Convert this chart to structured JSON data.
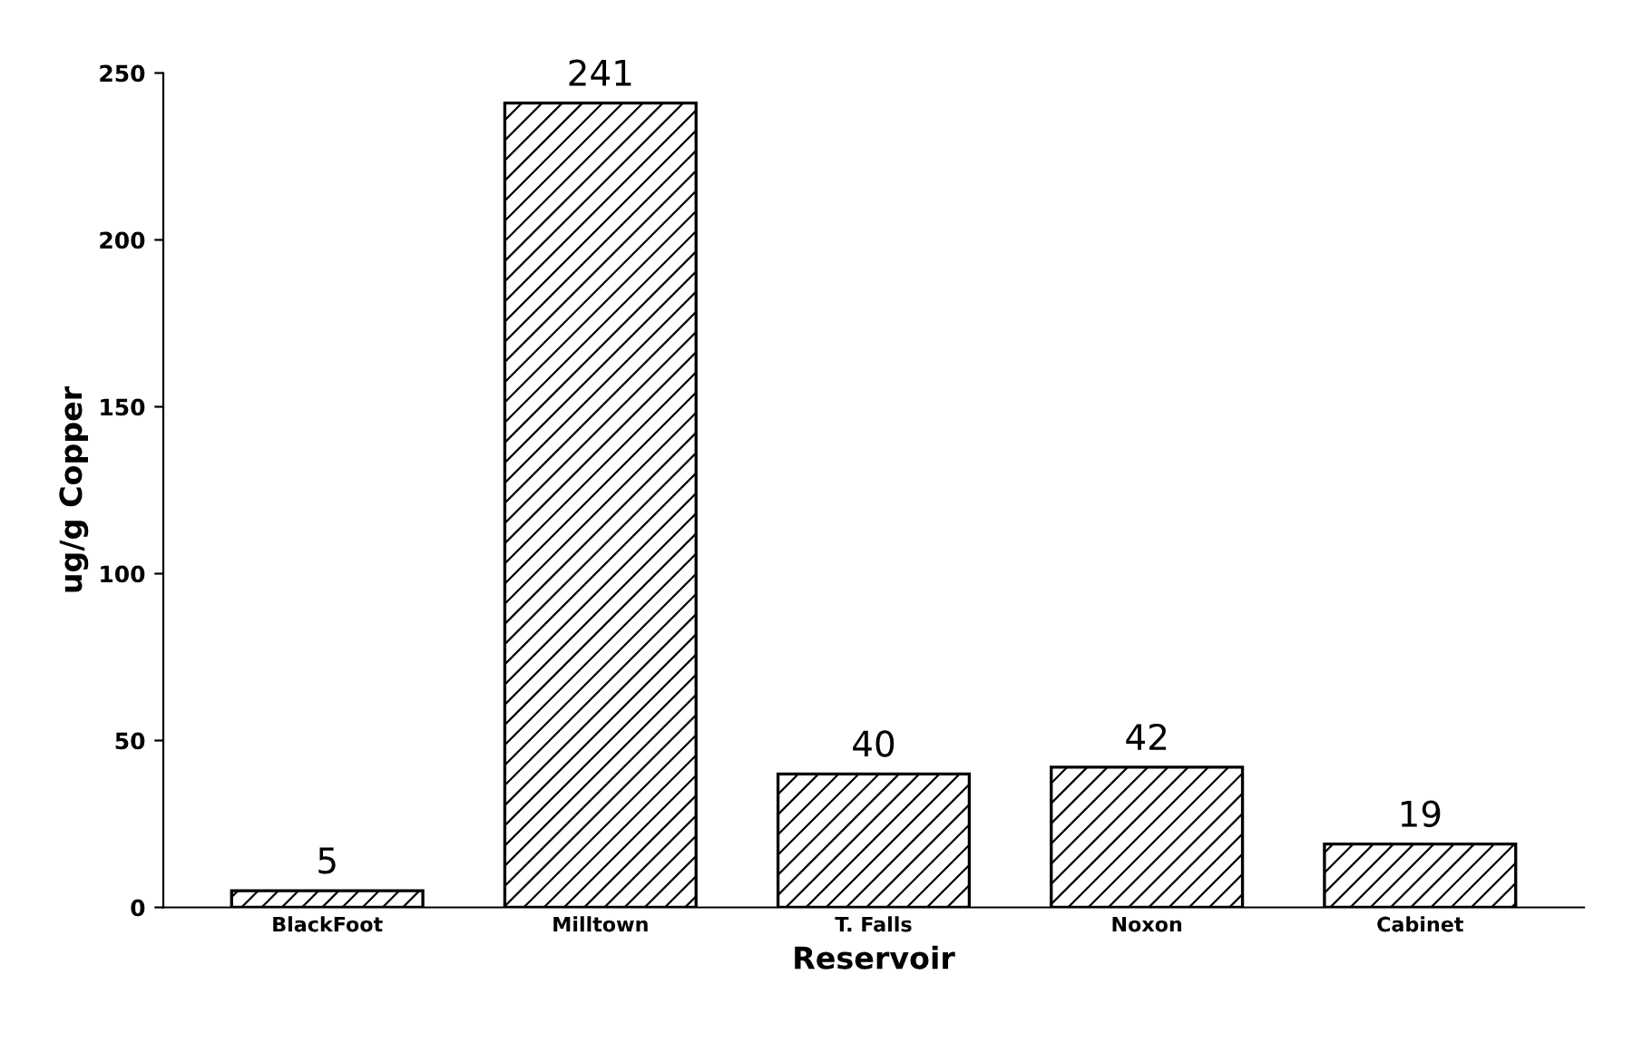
{
  "chart_data": {
    "type": "bar",
    "xlabel": "Reservoir",
    "ylabel": "ug/g Copper",
    "categories": [
      "BlackFoot",
      "Milltown",
      "T. Falls",
      "Noxon",
      "Cabinet"
    ],
    "values": [
      5,
      241,
      40,
      42,
      19
    ],
    "color": "#000000",
    "ylim": [
      0,
      250
    ],
    "yticks": [
      0,
      50,
      100,
      150,
      200,
      250
    ],
    "grid": false,
    "data_labels": true
  }
}
